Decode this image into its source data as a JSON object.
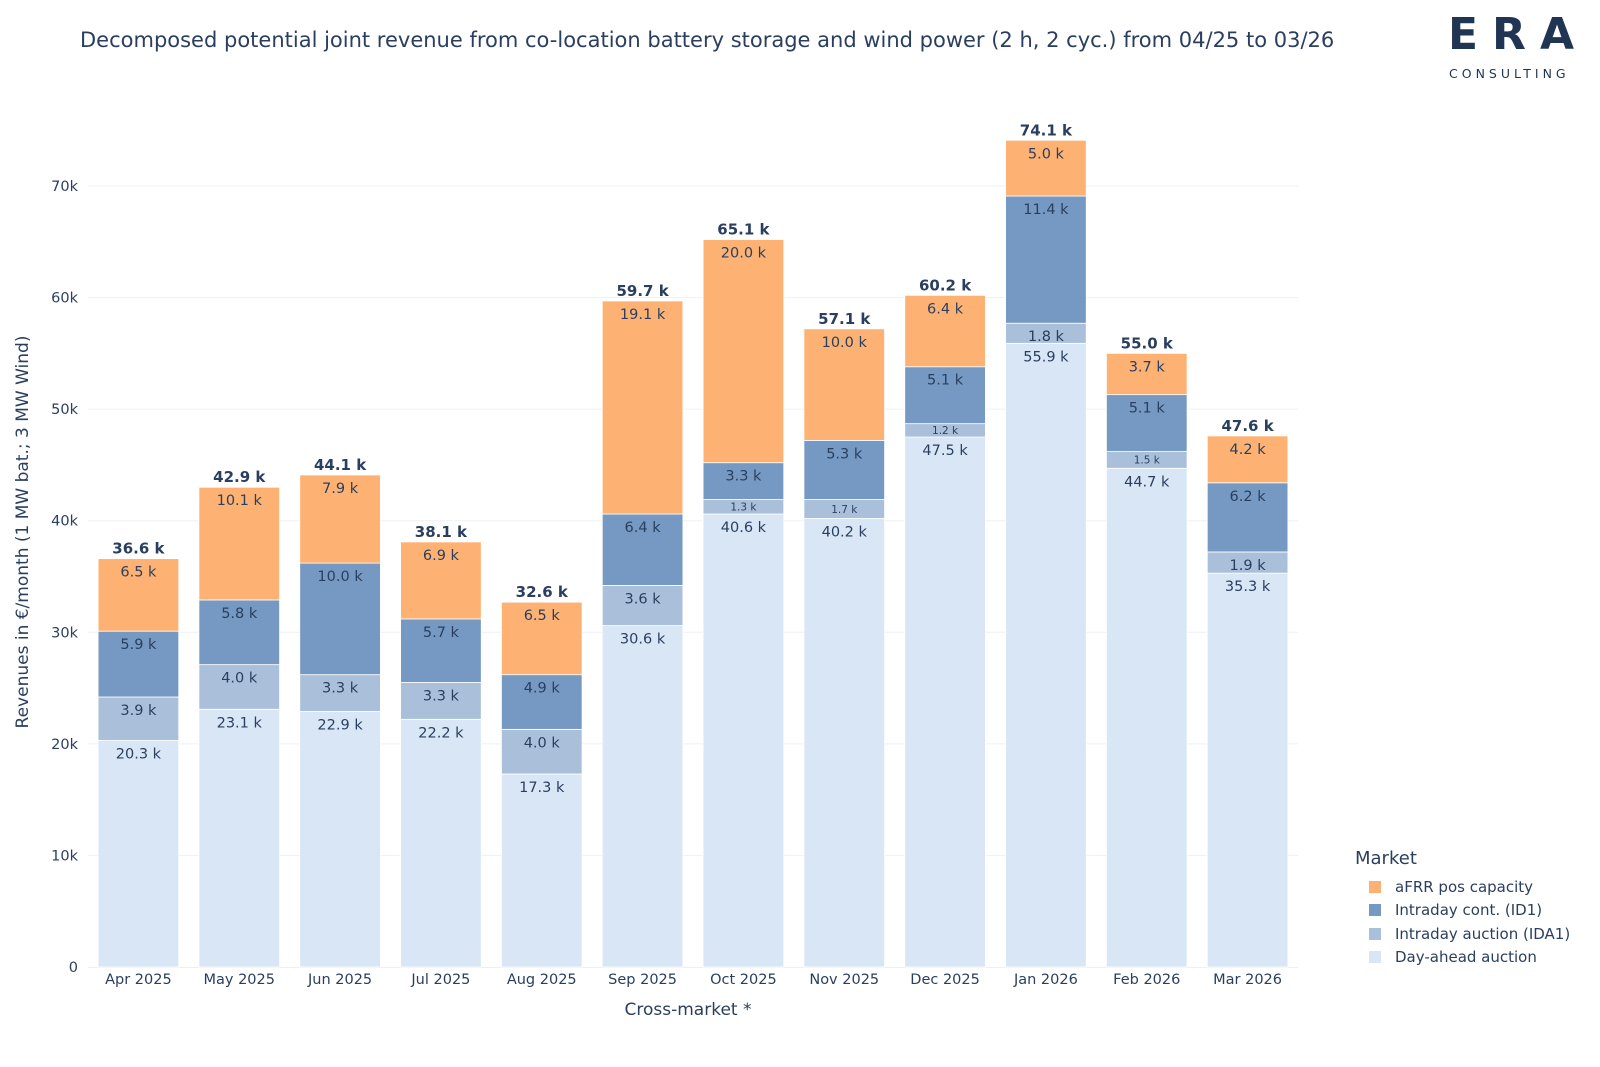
{
  "chart_data": {
    "type": "bar",
    "stacked": true,
    "title": "Decomposed potential joint revenue from co-location battery storage and wind power (2 h, 2 cyc.) from 04/25 to 03/26",
    "xlabel": "Cross-market *",
    "ylabel": "Revenues in €/month (1 MW bat.; 3 MW Wind)",
    "ylim": [
      0,
      78000
    ],
    "yticks": [
      0,
      10000,
      20000,
      30000,
      40000,
      50000,
      60000,
      70000
    ],
    "ytick_labels": [
      "0",
      "10k",
      "20k",
      "30k",
      "40k",
      "50k",
      "60k",
      "70k"
    ],
    "grid": true,
    "legend_title": "Market",
    "legend_position": "bottom-right",
    "categories": [
      "Apr 2025",
      "May 2025",
      "Jun 2025",
      "Jul 2025",
      "Aug 2025",
      "Sep 2025",
      "Oct 2025",
      "Nov 2025",
      "Dec 2025",
      "Jan 2026",
      "Feb 2026",
      "Mar 2026"
    ],
    "series": [
      {
        "name": "Day-ahead auction",
        "color": "#d9e6f6",
        "values": [
          20300,
          23100,
          22900,
          22200,
          17300,
          30600,
          40600,
          40200,
          47500,
          55900,
          44700,
          35300
        ],
        "labels": [
          "20.3 k",
          "23.1 k",
          "22.9 k",
          "22.2 k",
          "17.3 k",
          "30.6 k",
          "40.6 k",
          "40.2 k",
          "47.5 k",
          "55.9 k",
          "44.7 k",
          "35.3 k"
        ]
      },
      {
        "name": "Intraday auction (IDA1)",
        "color": "#aac0da",
        "values": [
          3900,
          4000,
          3300,
          3300,
          4000,
          3600,
          1300,
          1700,
          1200,
          1800,
          1500,
          1900
        ],
        "labels": [
          "3.9 k",
          "4.0 k",
          "3.3 k",
          "3.3 k",
          "4.0 k",
          "3.6 k",
          "1.3 k",
          "1.7 k",
          "1.2 k",
          "1.8 k",
          "1.5 k",
          "1.9 k"
        ]
      },
      {
        "name": "Intraday cont. (ID1)",
        "color": "#7599c2",
        "values": [
          5900,
          5800,
          10000,
          5700,
          4900,
          6400,
          3300,
          5300,
          5100,
          11400,
          5100,
          6200
        ],
        "labels": [
          "5.9 k",
          "5.8 k",
          "10.0 k",
          "5.7 k",
          "4.9 k",
          "6.4 k",
          "3.3 k",
          "5.3 k",
          "5.1 k",
          "11.4 k",
          "5.1 k",
          "6.2 k"
        ]
      },
      {
        "name": "aFRR pos capacity",
        "color": "#fdb274",
        "values": [
          6500,
          10100,
          7900,
          6900,
          6500,
          19100,
          20000,
          10000,
          6400,
          5000,
          3700,
          4200
        ],
        "labels": [
          "6.5 k",
          "10.1 k",
          "7.9 k",
          "6.9 k",
          "6.5 k",
          "19.1 k",
          "20.0 k",
          "10.0 k",
          "6.4 k",
          "5.0 k",
          "3.7 k",
          "4.2 k"
        ]
      }
    ],
    "totals": [
      36600,
      42900,
      44100,
      38100,
      32600,
      59700,
      65100,
      57100,
      60200,
      74100,
      55000,
      47600
    ],
    "total_labels": [
      "36.6 k",
      "42.9 k",
      "44.1 k",
      "38.1 k",
      "32.6 k",
      "59.7 k",
      "65.1 k",
      "57.1 k",
      "60.2 k",
      "74.1 k",
      "55.0 k",
      "47.6 k"
    ]
  },
  "legend": {
    "title": "Market",
    "items": [
      {
        "label": "aFRR pos capacity",
        "color": "#fdb274"
      },
      {
        "label": "Intraday cont. (ID1)",
        "color": "#7599c2"
      },
      {
        "label": "Intraday auction (IDA1)",
        "color": "#aac0da"
      },
      {
        "label": "Day-ahead auction",
        "color": "#d9e6f6"
      }
    ]
  },
  "logo": {
    "mark": "ERA",
    "sub": "CONSULTING"
  }
}
